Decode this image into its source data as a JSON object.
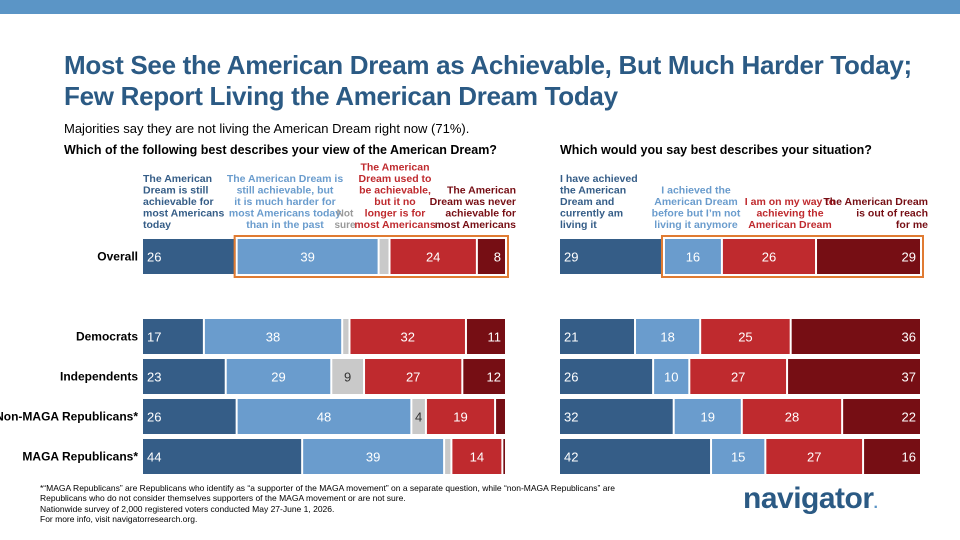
{
  "title": "Most See the American Dream as Achievable, But Much Harder Today; Few Report Living the American Dream Today",
  "subtitle": "Majorities say they are not living the American Dream right now (71%).",
  "logo": {
    "text": "navigator",
    "dot": "."
  },
  "footnote": [
    "*“MAGA Republicans” are Republicans who identify as “a supporter of the MAGA movement” on a separate question, while “non-MAGA Republicans” are",
    "Republicans who do not consider themselves supporters of the MAGA movement or are not sure.",
    "Nationwide survey of 2,000 registered voters conducted May 27-June 1, 2026.",
    "For more info, visit navigatorresearch.org."
  ],
  "colors": {
    "dark_blue": "#355d87",
    "light_blue": "#6a9ccd",
    "gray": "#c9c9c9",
    "red": "#bf2a2e",
    "dark_red": "#760e14",
    "highlight": "#e07b32",
    "title": "#2b5a84"
  },
  "chart_data": [
    {
      "type": "bar",
      "orientation": "horizontal",
      "stacked": true,
      "question": "Which of the following best describes your view of the American Dream?",
      "categories": [
        "Overall",
        "Democrats",
        "Independents",
        "Non-MAGA Republicans*",
        "MAGA Republicans*"
      ],
      "series": [
        {
          "name": "The American Dream is still achievable for most Americans today",
          "color": "#355d87",
          "values": [
            26,
            17,
            23,
            26,
            44
          ]
        },
        {
          "name": "The American Dream is still achievable, but it is much harder for most Americans today than in the past",
          "color": "#6a9ccd",
          "values": [
            39,
            38,
            29,
            48,
            39
          ]
        },
        {
          "name": "Not sure",
          "color": "#c9c9c9",
          "values": [
            3,
            2,
            9,
            4,
            2
          ]
        },
        {
          "name": "The American Dream used to be achievable, but it no longer is for most Americans",
          "color": "#bf2a2e",
          "values": [
            24,
            32,
            27,
            19,
            14
          ]
        },
        {
          "name": "The American Dream was never achievable for most Americans",
          "color": "#760e14",
          "values": [
            8,
            11,
            12,
            3,
            1
          ]
        }
      ],
      "labeled_values": [
        [
          26,
          39,
          null,
          24,
          8
        ],
        [
          17,
          38,
          null,
          32,
          11
        ],
        [
          23,
          29,
          9,
          27,
          12
        ],
        [
          26,
          48,
          4,
          19,
          null
        ],
        [
          44,
          39,
          null,
          14,
          null
        ]
      ],
      "highlight": {
        "category": "Overall",
        "series": [
          "The American Dream is still achievable, but it is much harder for most Americans today than in the past",
          "Not sure",
          "The American Dream used to be achievable, but it no longer is for most Americans",
          "The American Dream was never achievable for most Americans"
        ]
      }
    },
    {
      "type": "bar",
      "orientation": "horizontal",
      "stacked": true,
      "question": "Which would you say best describes your situation?",
      "categories": [
        "Overall",
        "Democrats",
        "Independents",
        "Non-MAGA Republicans*",
        "MAGA Republicans*"
      ],
      "series": [
        {
          "name": "I have achieved the American Dream and currently am living it",
          "color": "#355d87",
          "values": [
            29,
            21,
            26,
            32,
            42
          ]
        },
        {
          "name": "I achieved the American Dream before but I’m not living it anymore",
          "color": "#6a9ccd",
          "values": [
            16,
            18,
            10,
            19,
            15
          ]
        },
        {
          "name": "I am on my way to achieving the American Dream",
          "color": "#bf2a2e",
          "values": [
            26,
            25,
            27,
            28,
            27
          ]
        },
        {
          "name": "The American Dream is out of reach for me",
          "color": "#760e14",
          "values": [
            29,
            36,
            37,
            22,
            16
          ]
        }
      ],
      "labeled_values": [
        [
          29,
          16,
          26,
          29
        ],
        [
          21,
          18,
          25,
          36
        ],
        [
          26,
          10,
          27,
          37
        ],
        [
          32,
          19,
          28,
          22
        ],
        [
          42,
          15,
          27,
          16
        ]
      ],
      "highlight": {
        "category": "Overall",
        "series": [
          "I achieved the American Dream before but I’m not living it anymore",
          "I am on my way to achieving the American Dream",
          "The American Dream is out of reach for me"
        ]
      }
    }
  ]
}
